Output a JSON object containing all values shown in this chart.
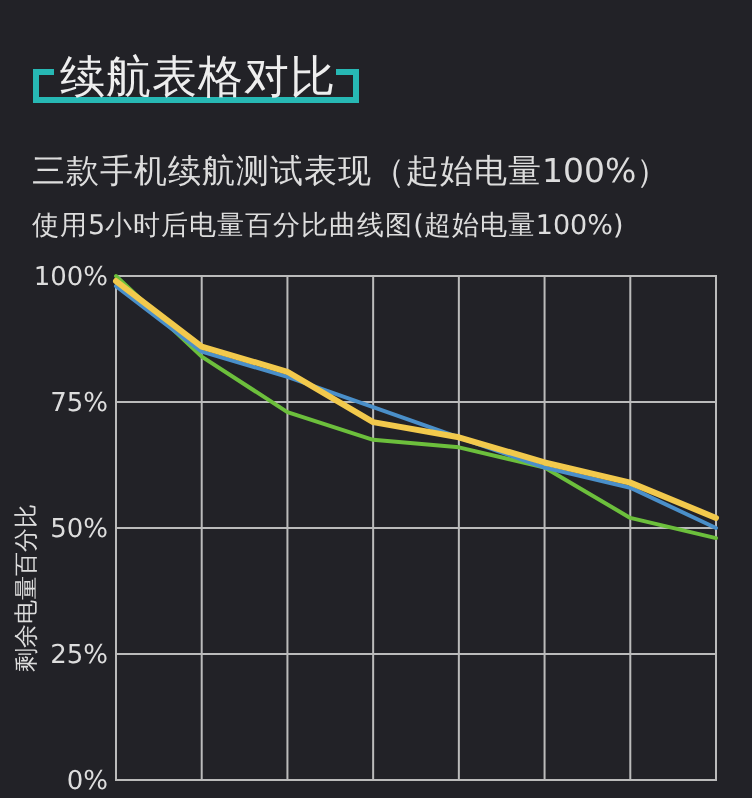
{
  "chart_data": {
    "type": "line",
    "title": "续航表格对比",
    "subtitle": "三款手机续航测试表现（起始电量100%）",
    "annotations": [
      "使用5小时后电量百分比曲线图(超始电量100%)"
    ],
    "ylabel": "剩余电量百分比",
    "categories": [
      null,
      null,
      null,
      null,
      null,
      null,
      null,
      null
    ],
    "ylim": [
      0,
      100
    ],
    "yticks": [
      {
        "value": 0,
        "label": "0%"
      },
      {
        "value": 25,
        "label": "25%"
      },
      {
        "value": 50,
        "label": "50%"
      },
      {
        "value": 75,
        "label": "75%"
      },
      {
        "value": 100,
        "label": "100%"
      }
    ],
    "tick_labels": "y",
    "grid": true,
    "marker": "none",
    "line_style": "solid",
    "series": [
      {
        "color": "#6cbf3c",
        "values": [
          100,
          84,
          73,
          67.5,
          66,
          62,
          52,
          48
        ]
      },
      {
        "color": "#4a8fc9",
        "values": [
          98,
          85,
          80,
          74,
          68,
          62,
          58,
          50
        ]
      },
      {
        "color": "#f2c94c",
        "values": [
          99,
          86,
          81,
          71,
          68,
          63,
          59,
          52
        ]
      }
    ]
  }
}
